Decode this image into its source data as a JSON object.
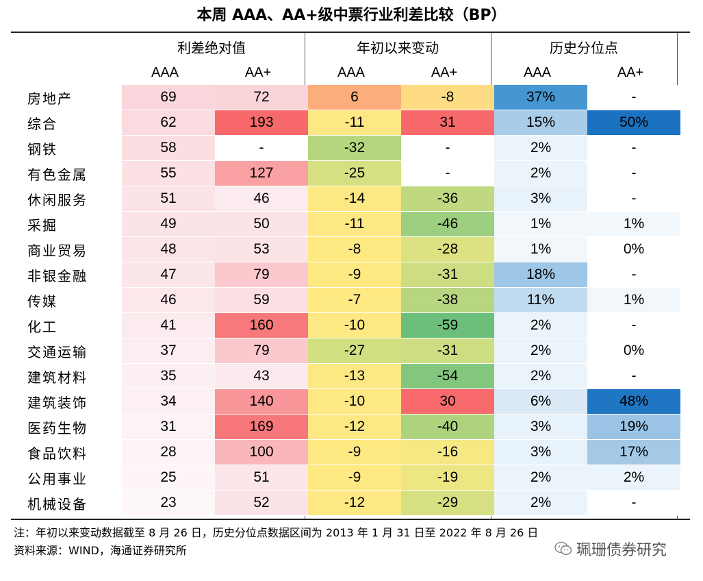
{
  "title": "本周 AAA、AA+级中票行业利差比较（BP）",
  "groups": [
    "利差绝对值",
    "年初以来变动",
    "历史分位点"
  ],
  "subheaders": [
    "AAA",
    "AA+",
    "AAA",
    "AA+",
    "AAA",
    "AA+"
  ],
  "rows": [
    {
      "industry": "房地产",
      "values": [
        "69",
        "72",
        "6",
        "-8",
        "37%",
        "-"
      ],
      "colors": [
        "#f9d7dc",
        "#f9d5da",
        "#fbae7c",
        "#fddc84",
        "#4697d1",
        "#ffffff"
      ]
    },
    {
      "industry": "综合",
      "values": [
        "62",
        "193",
        "-11",
        "31",
        "15%",
        "50%"
      ],
      "colors": [
        "#fadbe0",
        "#f8696b",
        "#fee883",
        "#f8696b",
        "#a9cce8",
        "#1a72c0"
      ]
    },
    {
      "industry": "钢铁",
      "values": [
        "58",
        "-",
        "-32",
        "-",
        "2%",
        "-"
      ],
      "colors": [
        "#fbdee2",
        "#ffffff",
        "#b5d67f",
        "#ffffff",
        "#ecf4fb",
        "#ffffff"
      ]
    },
    {
      "industry": "有色金属",
      "values": [
        "55",
        "127",
        "-25",
        "-",
        "2%",
        "-"
      ],
      "colors": [
        "#fbe0e4",
        "#f9a0a3",
        "#d6e082",
        "#ffffff",
        "#ecf4fb",
        "#ffffff"
      ]
    },
    {
      "industry": "休闲服务",
      "values": [
        "51",
        "46",
        "-14",
        "-36",
        "3%",
        "-"
      ],
      "colors": [
        "#fbe3e7",
        "#fcebee",
        "#fde883",
        "#c0d980",
        "#e8f2fa",
        "#ffffff"
      ]
    },
    {
      "industry": "采掘",
      "values": [
        "49",
        "50",
        "-11",
        "-46",
        "1%",
        "1%"
      ],
      "colors": [
        "#fbe4e8",
        "#fbe4e8",
        "#fee883",
        "#9ccf7f",
        "#f2f7fc",
        "#f2f7fc"
      ]
    },
    {
      "industry": "商业贸易",
      "values": [
        "48",
        "53",
        "-8",
        "-28",
        "1%",
        "0%"
      ],
      "colors": [
        "#fbe5e9",
        "#fbe3e6",
        "#fee983",
        "#dce182",
        "#f2f7fc",
        "#ffffff"
      ]
    },
    {
      "industry": "非银金融",
      "values": [
        "47",
        "79",
        "-9",
        "-31",
        "18%",
        "-"
      ],
      "colors": [
        "#fbe6ea",
        "#fac8cd",
        "#fee983",
        "#cddd81",
        "#9ec6e6",
        "#ffffff"
      ]
    },
    {
      "industry": "传媒",
      "values": [
        "46",
        "59",
        "-7",
        "-38",
        "11%",
        "1%"
      ],
      "colors": [
        "#fce7eb",
        "#fbdfe3",
        "#fee983",
        "#b8d57f",
        "#c0dbef",
        "#f2f7fc"
      ]
    },
    {
      "industry": "化工",
      "values": [
        "41",
        "160",
        "-10",
        "-59",
        "2%",
        "-"
      ],
      "colors": [
        "#fcebee",
        "#f8797b",
        "#fee883",
        "#6bbf7b",
        "#ecf4fb",
        "#ffffff"
      ]
    },
    {
      "industry": "交通运输",
      "values": [
        "37",
        "79",
        "-27",
        "-31",
        "2%",
        "0%"
      ],
      "colors": [
        "#fcedf0",
        "#fac8cd",
        "#d1df81",
        "#cddd81",
        "#ecf4fb",
        "#ffffff"
      ]
    },
    {
      "industry": "建筑材料",
      "values": [
        "35",
        "43",
        "-13",
        "-54",
        "2%",
        "-"
      ],
      "colors": [
        "#fcefF2",
        "#fce9ed",
        "#fde883",
        "#82c77d",
        "#ecf4fb",
        "#ffffff"
      ]
    },
    {
      "industry": "建筑装饰",
      "values": [
        "34",
        "140",
        "-10",
        "30",
        "6%",
        "48%"
      ],
      "colors": [
        "#fcf0f2",
        "#f8969a",
        "#fee883",
        "#f86a6b",
        "#dbeaf6",
        "#1f76c2"
      ]
    },
    {
      "industry": "医药生物",
      "values": [
        "31",
        "169",
        "-12",
        "-40",
        "3%",
        "19%"
      ],
      "colors": [
        "#fdf2f4",
        "#f8777a",
        "#fee883",
        "#aed37f",
        "#e8f2fa",
        "#9ac3e5"
      ]
    },
    {
      "industry": "食品饮料",
      "values": [
        "28",
        "100",
        "-9",
        "-16",
        "3%",
        "17%"
      ],
      "colors": [
        "#fdf3f5",
        "#f9b6bb",
        "#fee983",
        "#f6e883",
        "#e8f2fa",
        "#a3c9e7"
      ]
    },
    {
      "industry": "公用事业",
      "values": [
        "25",
        "51",
        "-9",
        "-19",
        "2%",
        "2%"
      ],
      "colors": [
        "#fdf5f7",
        "#fce6ea",
        "#fee983",
        "#eee683",
        "#ecf4fb",
        "#ecf4fb"
      ]
    },
    {
      "industry": "机械设备",
      "values": [
        "23",
        "52",
        "-12",
        "-29",
        "2%",
        "-"
      ],
      "colors": [
        "#fdf7f8",
        "#fbe4e8",
        "#fee883",
        "#d6e082",
        "#ecf4fb",
        "#ffffff"
      ]
    }
  ],
  "notes": [
    "注：年初以来变动数据截至 8 月 26 日，历史分位点数据区间为 2013 年 1 月 31 日至 2022 年 8 月 26 日",
    "资料来源：WIND，海通证券研究所"
  ],
  "watermark": "珮珊债券研究"
}
